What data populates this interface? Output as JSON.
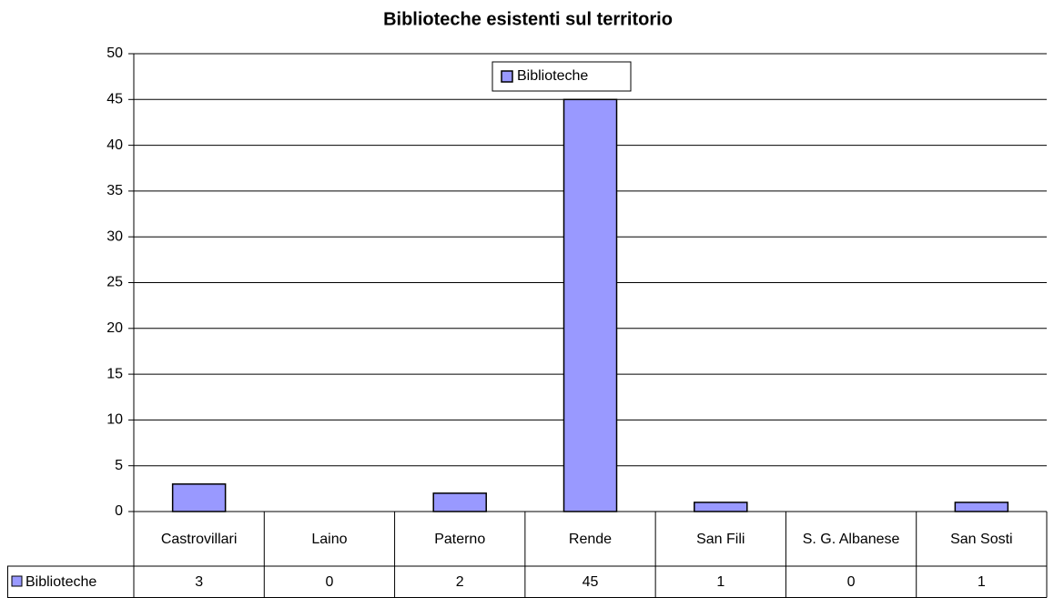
{
  "chart_data": {
    "type": "bar",
    "title": "Biblioteche esistenti sul territorio",
    "categories": [
      "Castrovillari",
      "Laino",
      "Paterno",
      "Rende",
      "San Fili",
      "S. G. Albanese",
      "San Sosti"
    ],
    "series": [
      {
        "name": "Biblioteche",
        "color": "#9999ff",
        "values": [
          3,
          0,
          2,
          45,
          1,
          0,
          1
        ]
      }
    ],
    "ylim": [
      0,
      50
    ],
    "yticks": [
      0,
      5,
      10,
      15,
      20,
      25,
      30,
      35,
      40,
      45,
      50
    ],
    "grid": true,
    "legend": "top",
    "data_table": true
  }
}
